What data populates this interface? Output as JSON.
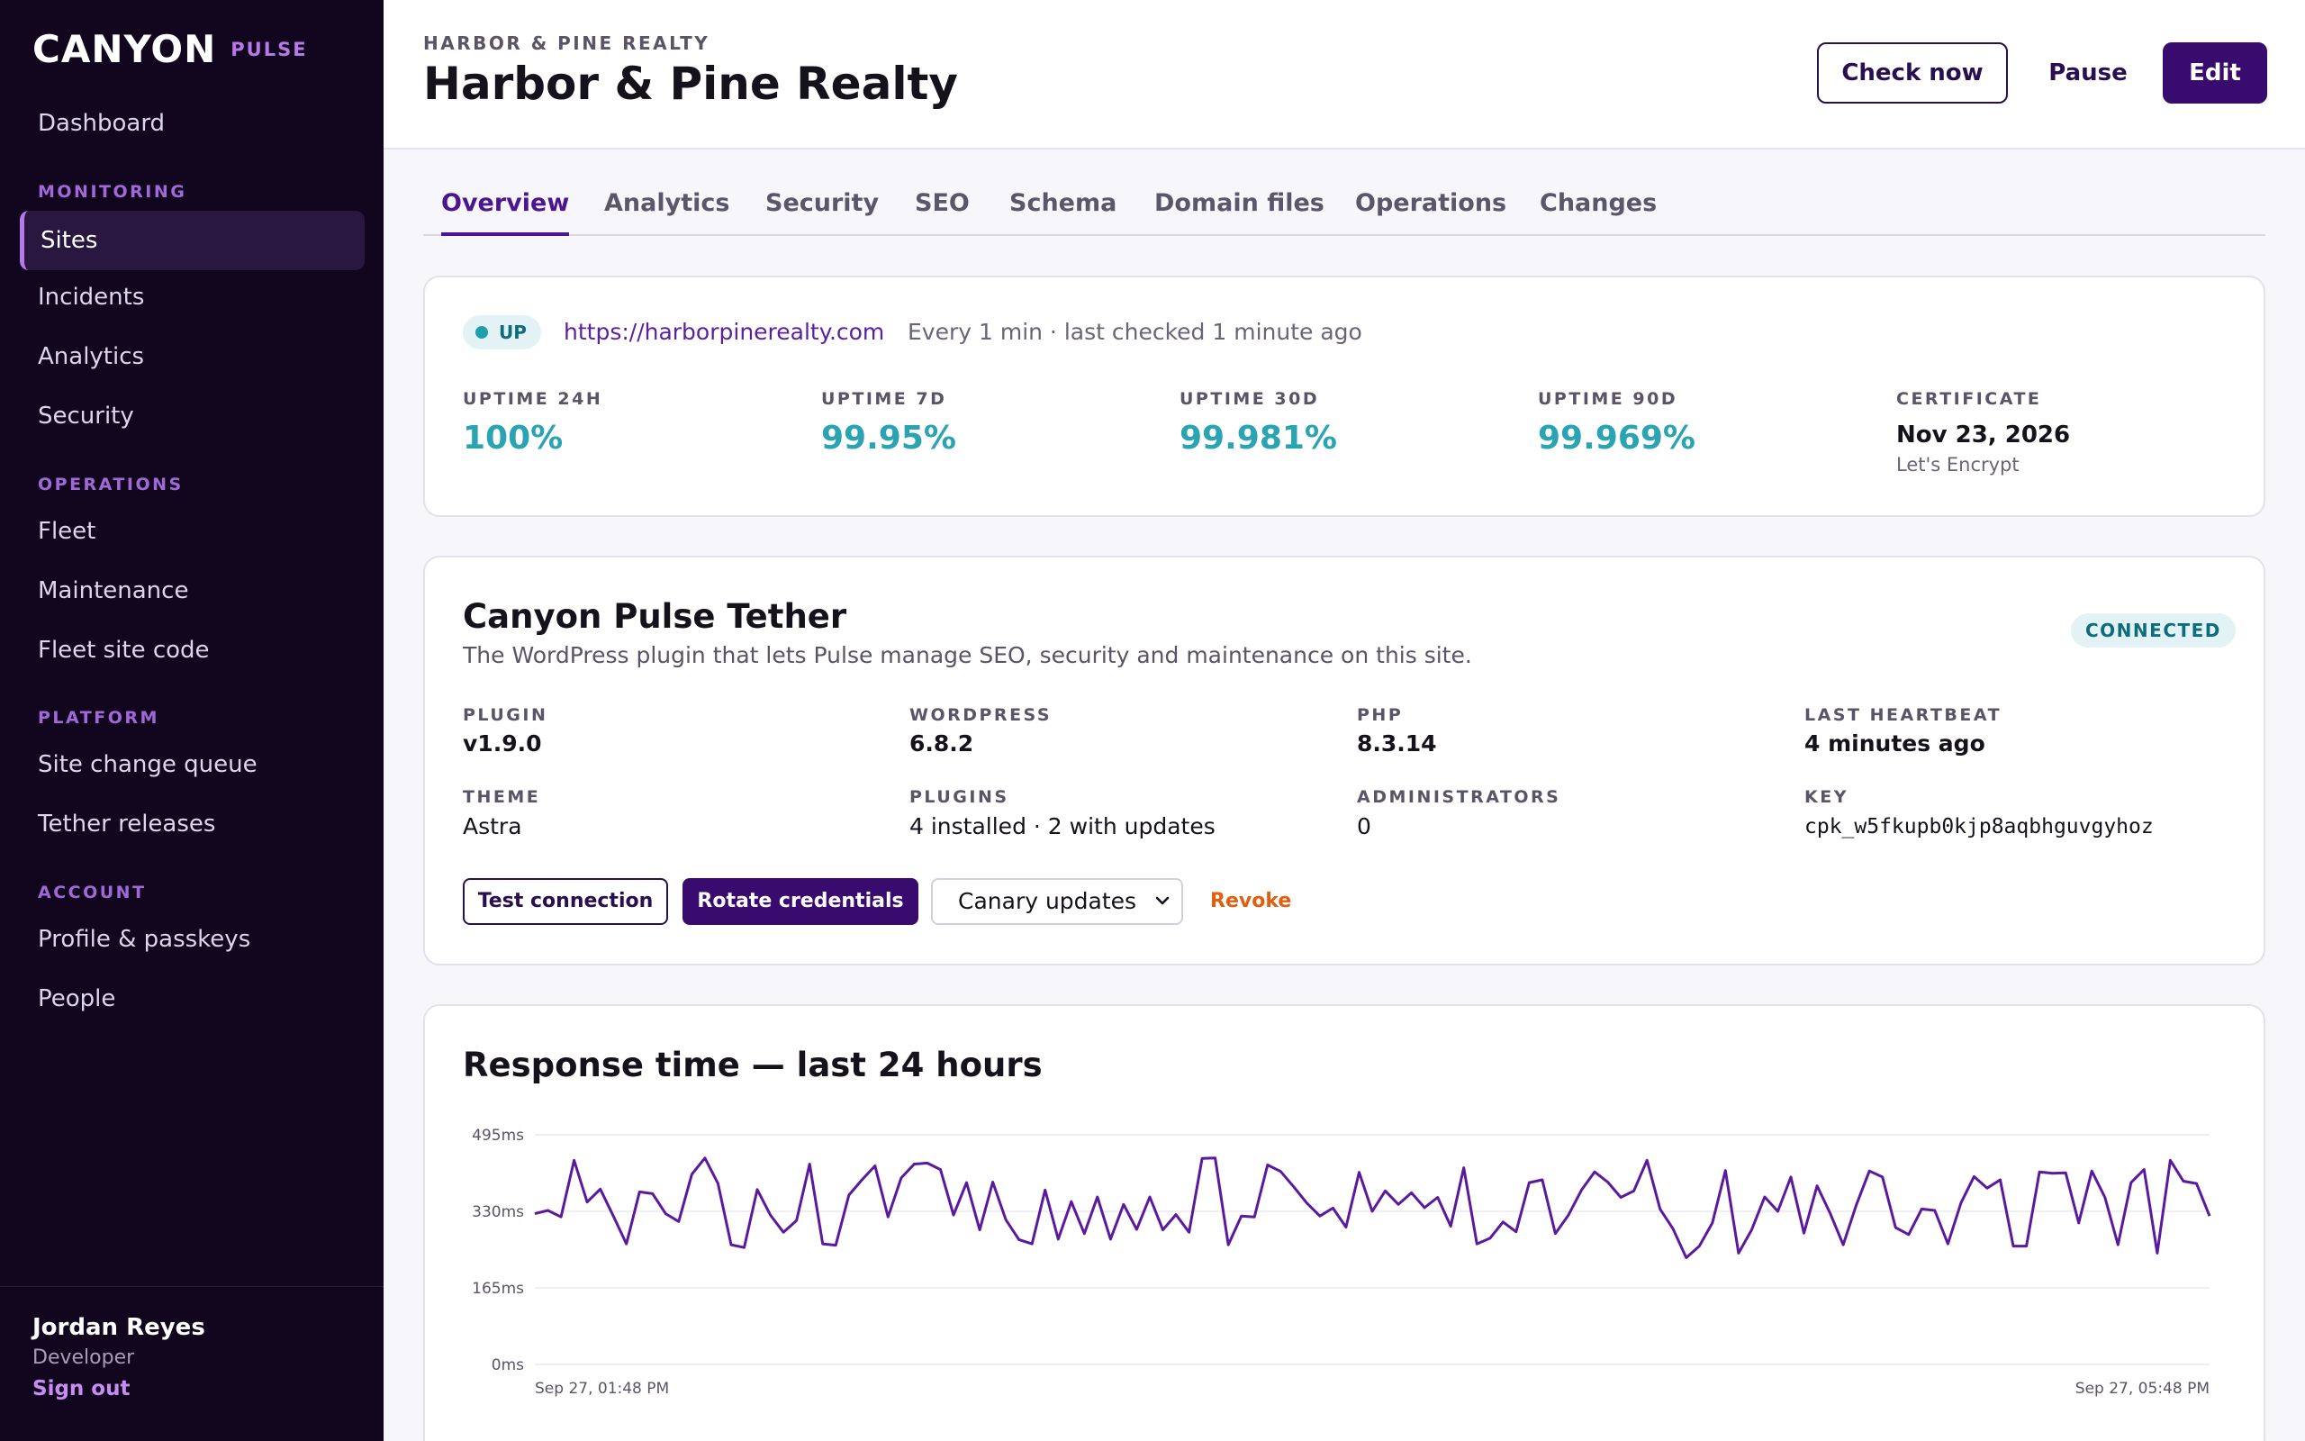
{
  "brand": {
    "logo": "CANYON",
    "sub": "PULSE"
  },
  "sidebar": {
    "items": [
      {
        "label": "Dashboard"
      },
      {
        "section": "MONITORING"
      },
      {
        "label": "Sites",
        "active": true
      },
      {
        "label": "Incidents"
      },
      {
        "label": "Analytics"
      },
      {
        "label": "Security"
      },
      {
        "section": "OPERATIONS"
      },
      {
        "label": "Fleet"
      },
      {
        "label": "Maintenance"
      },
      {
        "label": "Fleet site code"
      },
      {
        "section": "PLATFORM"
      },
      {
        "label": "Site change queue"
      },
      {
        "label": "Tether releases"
      },
      {
        "section": "ACCOUNT"
      },
      {
        "label": "Profile & passkeys"
      },
      {
        "label": "People"
      }
    ],
    "user": {
      "name": "Jordan Reyes",
      "role": "Developer",
      "signout": "Sign out"
    }
  },
  "header": {
    "eyebrow": "HARBOR & PINE REALTY",
    "title": "Harbor & Pine Realty",
    "check_now": "Check now",
    "pause": "Pause",
    "edit": "Edit"
  },
  "tabs": [
    "Overview",
    "Analytics",
    "Security",
    "SEO",
    "Schema",
    "Domain files",
    "Operations",
    "Changes"
  ],
  "status": {
    "badge": "UP",
    "url": "https://harborpinerealty.com",
    "check_info": "Every 1 min · last checked 1 minute ago",
    "stats": [
      {
        "label": "UPTIME 24H",
        "value": "100%"
      },
      {
        "label": "UPTIME 7D",
        "value": "99.95%"
      },
      {
        "label": "UPTIME 30D",
        "value": "99.981%"
      },
      {
        "label": "UPTIME 90D",
        "value": "99.969%"
      }
    ],
    "certificate": {
      "label": "CERTIFICATE",
      "value": "Nov 23, 2026",
      "issuer": "Let's Encrypt"
    }
  },
  "tether": {
    "title": "Canyon Pulse Tether",
    "description": "The WordPress plugin that lets Pulse manage SEO, security and maintenance on this site.",
    "badge": "CONNECTED",
    "plugin_label": "PLUGIN",
    "plugin_value": "v1.9.0",
    "wordpress_label": "WORDPRESS",
    "wordpress_value": "6.8.2",
    "php_label": "PHP",
    "php_value": "8.3.14",
    "heartbeat_label": "LAST HEARTBEAT",
    "heartbeat_value": "4 minutes ago",
    "theme_label": "THEME",
    "theme_value": "Astra",
    "plugins_label": "PLUGINS",
    "plugins_value": "4 installed · 2 with updates",
    "admins_label": "ADMINISTRATORS",
    "admins_value": "0",
    "key_label": "KEY",
    "key_value": "cpk_w5fkupb0kjp8aqbhguvgyhoz",
    "test_connection": "Test connection",
    "rotate_credentials": "Rotate credentials",
    "update_channel": "Canary updates",
    "revoke": "Revoke"
  },
  "response_chart": {
    "title": "Response time — last 24 hours"
  },
  "chart_data": {
    "type": "line",
    "title": "Response time — last 24 hours",
    "xlabel": "",
    "ylabel": "",
    "ylim": [
      0,
      495
    ],
    "yticks": [
      "495ms",
      "330ms",
      "165ms",
      "0ms"
    ],
    "ytick_values": [
      495,
      330,
      165,
      0
    ],
    "x_start_label": "Sep 27, 01:48 PM",
    "x_end_label": "Sep 27, 05:48 PM",
    "grid": true,
    "color": "#5b1a9e",
    "series": [
      {
        "values": [
          325,
          332,
          318,
          440,
          350,
          378,
          320,
          260,
          372,
          368,
          325,
          308,
          410,
          445,
          390,
          258,
          252,
          377,
          322,
          285,
          310,
          432,
          260,
          257,
          365,
          398,
          428,
          318,
          402,
          432,
          434,
          420,
          322,
          392,
          290,
          393,
          312,
          269,
          260,
          376,
          270,
          351,
          282,
          361,
          270,
          345,
          291,
          361,
          290,
          323,
          285,
          444,
          445,
          258,
          320,
          318,
          430,
          416,
          383,
          348,
          320,
          337,
          296,
          414,
          330,
          374,
          345,
          370,
          338,
          360,
          298,
          424,
          260,
          272,
          307,
          286,
          392,
          398,
          282,
          322,
          376,
          415,
          393,
          360,
          374,
          440,
          335,
          292,
          230,
          255,
          305,
          418,
          240,
          290,
          361,
          330,
          404,
          283,
          385,
          326,
          258,
          344,
          417,
          404,
          295,
          280,
          335,
          332,
          260,
          348,
          405,
          380,
          398,
          255,
          255,
          415,
          412,
          413,
          305,
          417,
          360,
          258,
          392,
          420,
          240,
          440,
          395,
          390,
          320
        ]
      }
    ]
  }
}
